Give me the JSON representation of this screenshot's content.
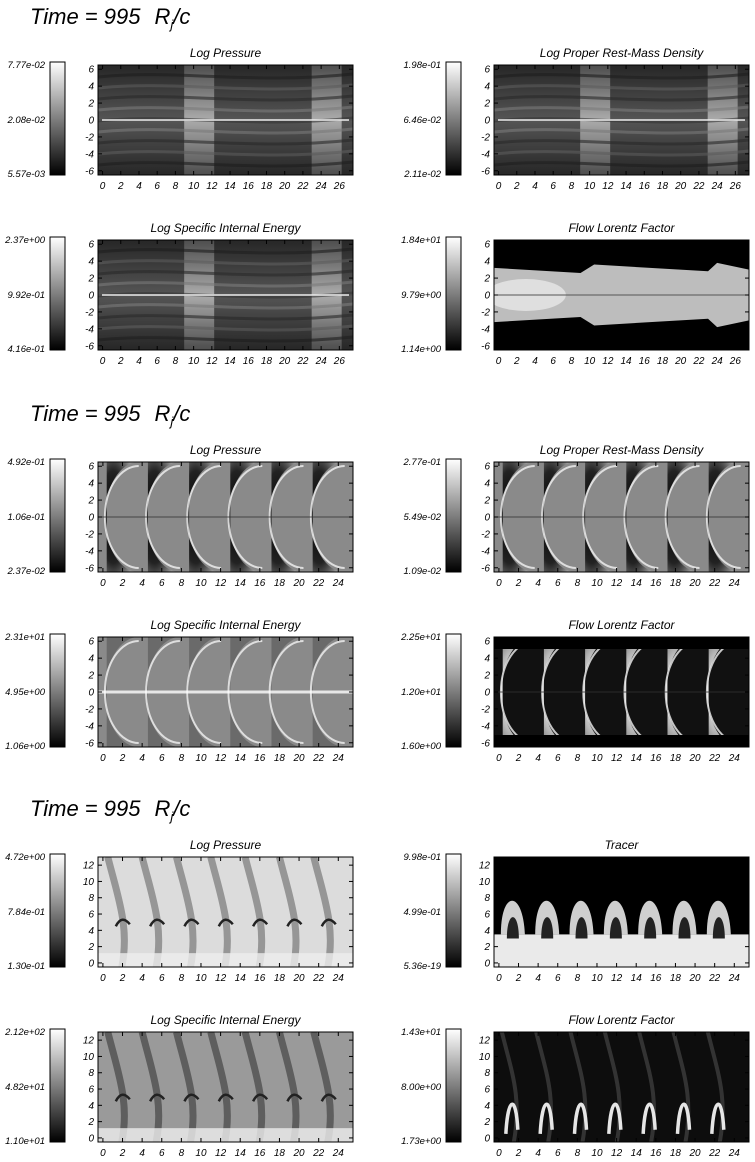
{
  "figure": {
    "sections": [
      {
        "time_title": "Time = 995",
        "time_unit": "R",
        "time_unit_sub": "j",
        "time_unit_tail": "/c",
        "panels": [
          {
            "title": "Log Pressure",
            "chart_data": {
              "type": "heatmap",
              "pattern": "knots",
              "xticks": [
                "0",
                "2",
                "4",
                "6",
                "8",
                "10",
                "12",
                "14",
                "16",
                "18",
                "20",
                "22",
                "24",
                "26"
              ],
              "yticks": [
                "6",
                "4",
                "2",
                "0",
                "-2",
                "-4",
                "-6"
              ],
              "xlim": [
                -0.5,
                27.5
              ],
              "ylim": [
                -6.5,
                6.5
              ],
              "colorbar": {
                "max": "7.77e-02",
                "mid": "2.08e-02",
                "min": "5.57e-03"
              },
              "colormap": "grayscale"
            }
          },
          {
            "title": "Log Proper Rest-Mass Density",
            "chart_data": {
              "type": "heatmap",
              "pattern": "knots",
              "xticks": [
                "0",
                "2",
                "4",
                "6",
                "8",
                "10",
                "12",
                "14",
                "16",
                "18",
                "20",
                "22",
                "24",
                "26"
              ],
              "yticks": [
                "6",
                "4",
                "2",
                "0",
                "-2",
                "-4",
                "-6"
              ],
              "xlim": [
                -0.5,
                27.5
              ],
              "ylim": [
                -6.5,
                6.5
              ],
              "colorbar": {
                "max": "1.98e-01",
                "mid": "6.46e-02",
                "min": "2.11e-02"
              },
              "colormap": "grayscale"
            }
          },
          {
            "title": "Log Specific Internal Energy",
            "chart_data": {
              "type": "heatmap",
              "pattern": "knots",
              "xticks": [
                "0",
                "2",
                "4",
                "6",
                "8",
                "10",
                "12",
                "14",
                "16",
                "18",
                "20",
                "22",
                "24",
                "26"
              ],
              "yticks": [
                "6",
                "4",
                "2",
                "0",
                "-2",
                "-4",
                "-6"
              ],
              "xlim": [
                -0.5,
                27.5
              ],
              "ylim": [
                -6.5,
                6.5
              ],
              "colorbar": {
                "max": "2.37e+00",
                "mid": "9.92e-01",
                "min": "4.16e-01"
              },
              "colormap": "grayscale"
            }
          },
          {
            "title": "Flow Lorentz Factor",
            "chart_data": {
              "type": "heatmap",
              "pattern": "jet",
              "xticks": [
                "0",
                "2",
                "4",
                "6",
                "8",
                "10",
                "12",
                "14",
                "16",
                "18",
                "20",
                "22",
                "24",
                "26"
              ],
              "yticks": [
                "6",
                "4",
                "2",
                "0",
                "-2",
                "-4",
                "-6"
              ],
              "xlim": [
                -0.5,
                27.5
              ],
              "ylim": [
                -6.5,
                6.5
              ],
              "colorbar": {
                "max": "1.84e+01",
                "mid": "9.79e+00",
                "min": "1.14e+00"
              },
              "colormap": "grayscale"
            }
          }
        ]
      },
      {
        "time_title": "Time = 995",
        "time_unit": "R",
        "time_unit_sub": "j",
        "time_unit_tail": "/c",
        "panels": [
          {
            "title": "Log Pressure",
            "chart_data": {
              "type": "heatmap",
              "pattern": "cells",
              "xticks": [
                "0",
                "2",
                "4",
                "6",
                "8",
                "10",
                "12",
                "14",
                "16",
                "18",
                "20",
                "22",
                "24"
              ],
              "yticks": [
                "6",
                "4",
                "2",
                "0",
                "-2",
                "-4",
                "-6"
              ],
              "xlim": [
                -0.5,
                25.5
              ],
              "ylim": [
                -6.5,
                6.5
              ],
              "colorbar": {
                "max": "4.92e-01",
                "mid": "1.06e-01",
                "min": "2.37e-02"
              },
              "colormap": "grayscale"
            }
          },
          {
            "title": "Log Proper Rest-Mass Density",
            "chart_data": {
              "type": "heatmap",
              "pattern": "cells",
              "xticks": [
                "0",
                "2",
                "4",
                "6",
                "8",
                "10",
                "12",
                "14",
                "16",
                "18",
                "20",
                "22",
                "24"
              ],
              "yticks": [
                "6",
                "4",
                "2",
                "0",
                "-2",
                "-4",
                "-6"
              ],
              "xlim": [
                -0.5,
                25.5
              ],
              "ylim": [
                -6.5,
                6.5
              ],
              "colorbar": {
                "max": "2.77e-01",
                "mid": "5.49e-02",
                "min": "1.09e-02"
              },
              "colormap": "grayscale"
            }
          },
          {
            "title": "Log Specific Internal Energy",
            "chart_data": {
              "type": "heatmap",
              "pattern": "cells-energy",
              "xticks": [
                "0",
                "2",
                "4",
                "6",
                "8",
                "10",
                "12",
                "14",
                "16",
                "18",
                "20",
                "22",
                "24"
              ],
              "yticks": [
                "6",
                "4",
                "2",
                "0",
                "-2",
                "-4",
                "-6"
              ],
              "xlim": [
                -0.5,
                25.5
              ],
              "ylim": [
                -6.5,
                6.5
              ],
              "colorbar": {
                "max": "2.31e+01",
                "mid": "4.95e+00",
                "min": "1.06e+00"
              },
              "colormap": "grayscale"
            }
          },
          {
            "title": "Flow Lorentz Factor",
            "chart_data": {
              "type": "heatmap",
              "pattern": "cells-lorentz",
              "xticks": [
                "0",
                "2",
                "4",
                "6",
                "8",
                "10",
                "12",
                "14",
                "16",
                "18",
                "20",
                "22",
                "24"
              ],
              "yticks": [
                "6",
                "4",
                "2",
                "0",
                "-2",
                "-4",
                "-6"
              ],
              "xlim": [
                -0.5,
                25.5
              ],
              "ylim": [
                -6.5,
                6.5
              ],
              "colorbar": {
                "max": "2.25e+01",
                "mid": "1.20e+01",
                "min": "1.60e+00"
              },
              "colormap": "grayscale"
            }
          }
        ]
      },
      {
        "time_title": "Time = 995",
        "time_unit": "R",
        "time_unit_sub": "j",
        "time_unit_tail": "/c",
        "panels": [
          {
            "title": "Log Pressure",
            "chart_data": {
              "type": "heatmap",
              "pattern": "waves",
              "xticks": [
                "0",
                "2",
                "4",
                "6",
                "8",
                "10",
                "12",
                "14",
                "16",
                "18",
                "20",
                "22",
                "24"
              ],
              "yticks": [
                "12",
                "10",
                "8",
                "6",
                "4",
                "2",
                "0"
              ],
              "xlim": [
                -0.5,
                25.5
              ],
              "ylim": [
                -0.5,
                13
              ],
              "colorbar": {
                "max": "4.72e+00",
                "mid": "7.84e-01",
                "min": "1.30e-01"
              },
              "colormap": "grayscale"
            }
          },
          {
            "title": "Tracer",
            "chart_data": {
              "type": "heatmap",
              "pattern": "tracer",
              "xticks": [
                "0",
                "2",
                "4",
                "6",
                "8",
                "10",
                "12",
                "14",
                "16",
                "18",
                "20",
                "22",
                "24"
              ],
              "yticks": [
                "12",
                "10",
                "8",
                "6",
                "4",
                "2",
                "0"
              ],
              "xlim": [
                -0.5,
                25.5
              ],
              "ylim": [
                -0.5,
                13
              ],
              "colorbar": {
                "max": "9.98e-01",
                "mid": "4.99e-01",
                "min": "5.36e-19"
              },
              "colormap": "grayscale"
            }
          },
          {
            "title": "Log Specific Internal Energy",
            "chart_data": {
              "type": "heatmap",
              "pattern": "waves-energy",
              "xticks": [
                "0",
                "2",
                "4",
                "6",
                "8",
                "10",
                "12",
                "14",
                "16",
                "18",
                "20",
                "22",
                "24"
              ],
              "yticks": [
                "12",
                "10",
                "8",
                "6",
                "4",
                "2",
                "0"
              ],
              "xlim": [
                -0.5,
                25.5
              ],
              "ylim": [
                -0.5,
                13
              ],
              "colorbar": {
                "max": "2.12e+02",
                "mid": "4.82e+01",
                "min": "1.10e+01"
              },
              "colormap": "grayscale"
            }
          },
          {
            "title": "Flow Lorentz Factor",
            "chart_data": {
              "type": "heatmap",
              "pattern": "lorentz-low",
              "xticks": [
                "0",
                "2",
                "4",
                "6",
                "8",
                "10",
                "12",
                "14",
                "16",
                "18",
                "20",
                "22",
                "24"
              ],
              "yticks": [
                "12",
                "10",
                "8",
                "6",
                "4",
                "2",
                "0"
              ],
              "xlim": [
                -0.5,
                25.5
              ],
              "ylim": [
                -0.5,
                13
              ],
              "colorbar": {
                "max": "1.43e+01",
                "mid": "8.00e+00",
                "min": "1.73e+00"
              },
              "colormap": "grayscale"
            }
          }
        ]
      }
    ]
  }
}
